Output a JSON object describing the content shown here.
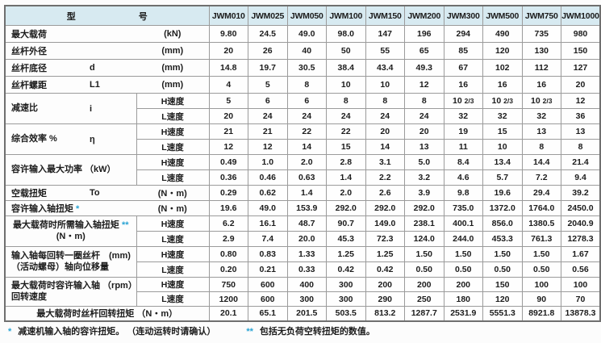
{
  "table": {
    "corner": [
      "型",
      "号"
    ],
    "models": [
      "JWM010",
      "JWM025",
      "JWM050",
      "JWM100",
      "JWM150",
      "JWM200",
      "JWM300",
      "JWM500",
      "JWM750",
      "JWM1000"
    ],
    "rows": [
      {
        "kind": "simple",
        "label": "最大载荷",
        "symbol": "",
        "unit": "(kN)",
        "values": [
          "9.80",
          "24.5",
          "49.0",
          "98.0",
          "147",
          "196",
          "294",
          "490",
          "735",
          "980"
        ]
      },
      {
        "kind": "simple",
        "label": "丝杆外径",
        "symbol": "",
        "unit": "(mm)",
        "values": [
          "20",
          "26",
          "40",
          "50",
          "55",
          "65",
          "85",
          "120",
          "130",
          "150"
        ]
      },
      {
        "kind": "simple",
        "label": "丝杆底径",
        "symbol": "d",
        "unit": "(mm)",
        "values": [
          "14.8",
          "19.7",
          "30.5",
          "38.4",
          "43.4",
          "49.3",
          "67",
          "102",
          "112",
          "127"
        ]
      },
      {
        "kind": "simple",
        "label": "丝杆螺距",
        "symbol": "L1",
        "unit": "(mm)",
        "values": [
          "4",
          "5",
          "8",
          "10",
          "10",
          "12",
          "16",
          "16",
          "16",
          "20"
        ]
      },
      {
        "kind": "dual",
        "label_lines": [
          "减速比"
        ],
        "symbol": "i",
        "align": "lef",
        "speeds": [
          {
            "name": "H速度",
            "values": [
              "5",
              "6",
              "6",
              "8",
              "8",
              "8",
              "10 2/3",
              "10 2/3",
              "10 2/3",
              "12"
            ]
          },
          {
            "name": "L速度",
            "values": [
              "20",
              "24",
              "24",
              "24",
              "24",
              "24",
              "32",
              "32",
              "32",
              "36"
            ]
          }
        ]
      },
      {
        "kind": "dual",
        "label_lines": [
          "综合效率 %"
        ],
        "symbol": "η",
        "align": "lef",
        "speeds": [
          {
            "name": "H速度",
            "values": [
              "21",
              "21",
              "22",
              "22",
              "20",
              "20",
              "19",
              "15",
              "13",
              "13"
            ]
          },
          {
            "name": "L速度",
            "values": [
              "12",
              "12",
              "14",
              "15",
              "14",
              "13",
              "11",
              "10",
              "8",
              "8"
            ]
          }
        ]
      },
      {
        "kind": "dual",
        "label_lines": [
          "容许输入最大功率 （kW）"
        ],
        "symbol": "",
        "align": "lef",
        "speeds": [
          {
            "name": "H速度",
            "values": [
              "0.49",
              "1.0",
              "2.0",
              "2.8",
              "3.1",
              "5.0",
              "8.4",
              "13.4",
              "14.4",
              "21.4"
            ]
          },
          {
            "name": "L速度",
            "values": [
              "0.36",
              "0.46",
              "0.63",
              "1.4",
              "2.2",
              "3.2",
              "4.6",
              "5.7",
              "7.2",
              "9.4"
            ]
          }
        ]
      },
      {
        "kind": "simple",
        "label": "空载扭矩",
        "symbol": "To",
        "unit": "(N・m)",
        "values": [
          "0.29",
          "0.62",
          "1.4",
          "2.0",
          "2.6",
          "3.9",
          "9.8",
          "19.6",
          "29.4",
          "39.2"
        ]
      },
      {
        "kind": "simple",
        "label": "容许输入轴扭矩",
        "star": "*",
        "symbol": "",
        "unit": "(N・m)",
        "values": [
          "19.6",
          "49.0",
          "153.9",
          "292.0",
          "292.0",
          "292.0",
          "735.0",
          "1372.0",
          "1764.0",
          "2450.0"
        ]
      },
      {
        "kind": "dual",
        "label_lines": [
          "最大载荷时所需输入轴扭矩",
          "(N・m)"
        ],
        "star": "**",
        "align": "cen",
        "speeds": [
          {
            "name": "H速度",
            "values": [
              "6.2",
              "16.1",
              "48.7",
              "90.7",
              "149.0",
              "238.1",
              "400.1",
              "856.0",
              "1380.5",
              "2040.9"
            ]
          },
          {
            "name": "L速度",
            "values": [
              "2.9",
              "7.4",
              "20.0",
              "45.3",
              "72.3",
              "124.0",
              "244.0",
              "453.3",
              "761.3",
              "1278.3"
            ]
          }
        ]
      },
      {
        "kind": "dual",
        "label_lines": [
          "输入轴每回转一圈丝杆　(mm)",
          "（活动螺母）轴向位移量"
        ],
        "align": "lef",
        "speeds": [
          {
            "name": "H速度",
            "values": [
              "0.80",
              "0.83",
              "1.33",
              "1.25",
              "1.25",
              "1.50",
              "1.50",
              "1.50",
              "1.50",
              "1.67"
            ]
          },
          {
            "name": "L速度",
            "values": [
              "0.20",
              "0.21",
              "0.33",
              "0.42",
              "0.42",
              "0.50",
              "0.50",
              "0.50",
              "0.50",
              "0.56"
            ]
          }
        ]
      },
      {
        "kind": "dual",
        "label_lines": [
          "最大载荷时容许输入轴 （rpm）",
          "回转速度"
        ],
        "align": "lef",
        "speeds": [
          {
            "name": "H速度",
            "values": [
              "750",
              "600",
              "400",
              "300",
              "200",
              "200",
              "200",
              "150",
              "100",
              "100"
            ]
          },
          {
            "name": "L速度",
            "values": [
              "1200",
              "600",
              "300",
              "300",
              "290",
              "250",
              "180",
              "120",
              "90",
              "70"
            ]
          }
        ]
      },
      {
        "kind": "full",
        "label": "最大载荷时丝杆回转扭矩 （N・m）",
        "values": [
          "20.1",
          "65.1",
          "201.5",
          "503.5",
          "813.2",
          "1287.7",
          "2531.9",
          "5551.3",
          "8921.8",
          "13878.3"
        ]
      }
    ],
    "notes": [
      {
        "star": "*",
        "text": "减速机输入轴的容许扭矩。 （连动运转时请确认）"
      },
      {
        "star": "**",
        "text": "包括无负荷空转扭矩的数值。"
      }
    ],
    "colors": {
      "header_bg": "#d7eaf1",
      "star_accent": "#29a3d4",
      "border": "#9b9b9b"
    }
  }
}
